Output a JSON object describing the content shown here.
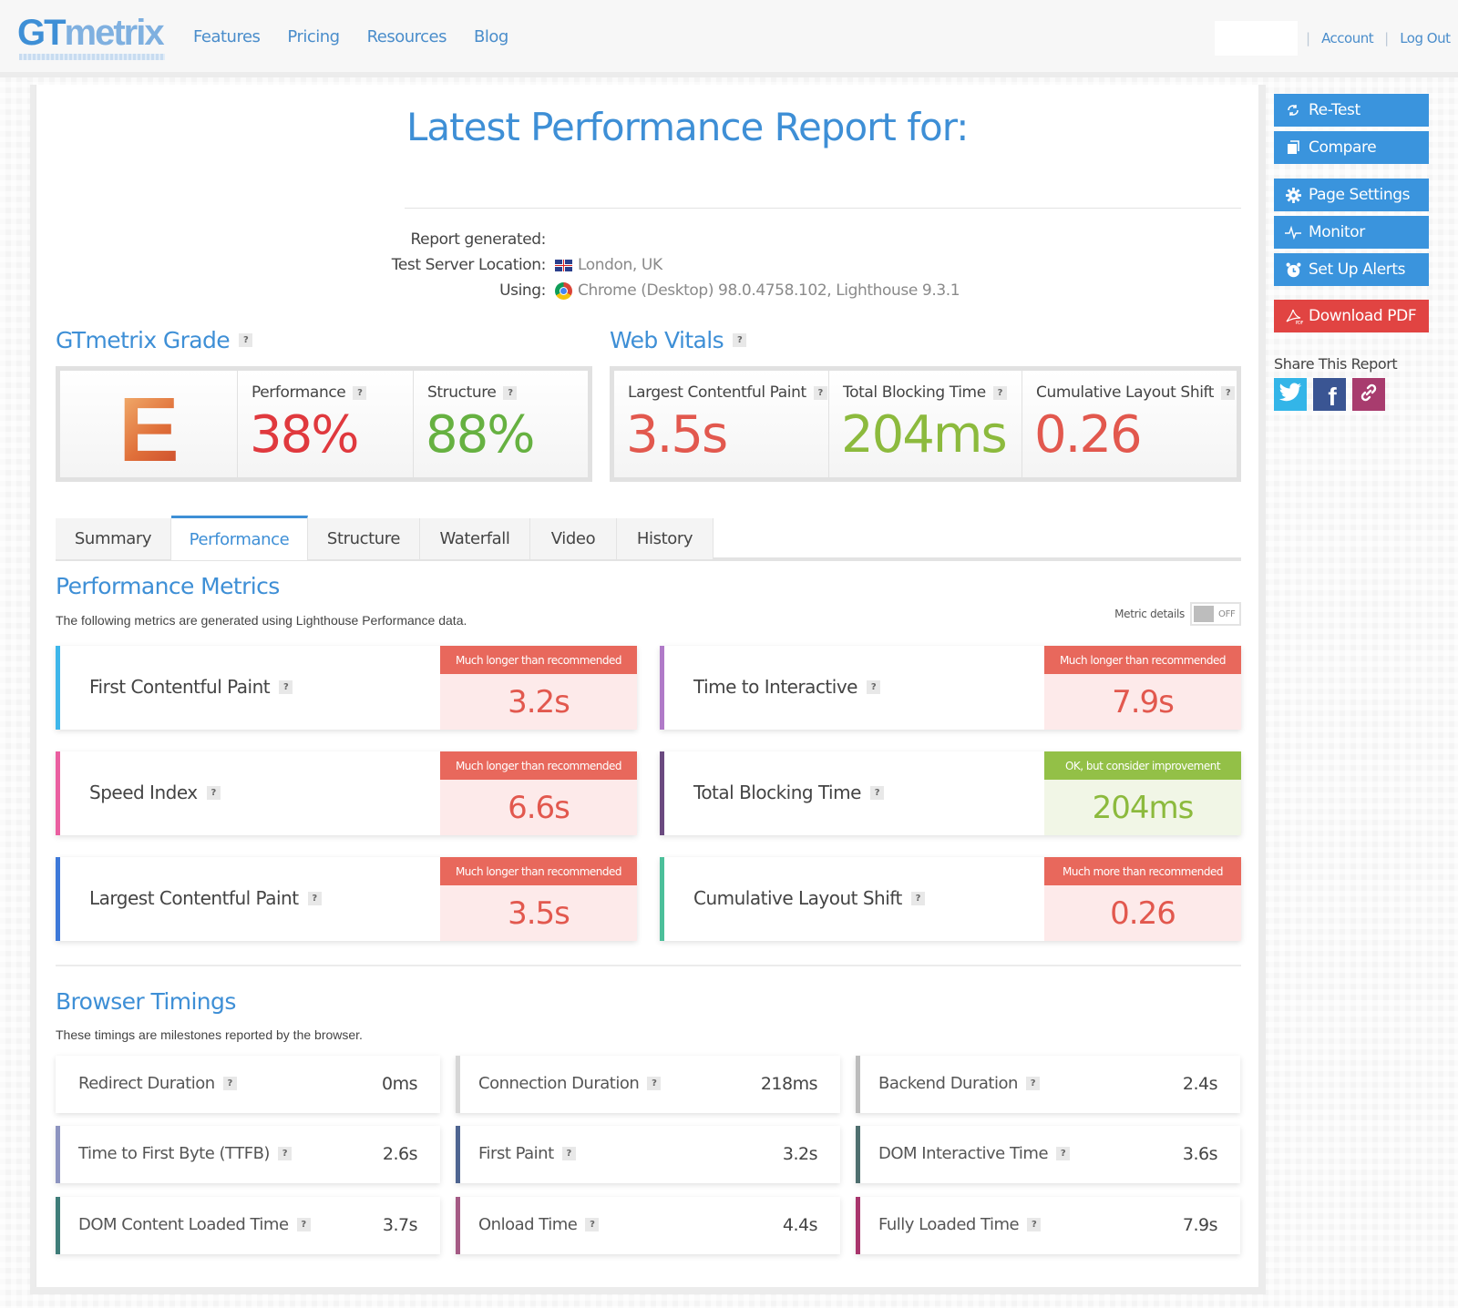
{
  "header": {
    "logo": "GTmetrix",
    "nav": [
      "Features",
      "Pricing",
      "Resources",
      "Blog"
    ],
    "user_links": [
      "Account",
      "Log Out"
    ],
    "separator": "|"
  },
  "report": {
    "title": "Latest Performance Report for:",
    "meta": [
      {
        "label": "Report generated:",
        "value": ""
      },
      {
        "label": "Test Server Location:",
        "value": "London, UK",
        "icon": "uk-flag-icon"
      },
      {
        "label": "Using:",
        "value": "Chrome (Desktop) 98.0.4758.102, Lighthouse 9.3.1",
        "icon": "chrome-icon"
      }
    ]
  },
  "grade": {
    "title": "GTmetrix Grade",
    "letter": "E",
    "performance_label": "Performance",
    "performance_value": "38%",
    "structure_label": "Structure",
    "structure_value": "88%"
  },
  "vitals": {
    "title": "Web Vitals",
    "items": [
      {
        "label": "Largest Contentful Paint",
        "value": "3.5s",
        "color": "#e2584e"
      },
      {
        "label": "Total Blocking Time",
        "value": "204ms",
        "color": "#8cba3d"
      },
      {
        "label": "Cumulative Layout Shift",
        "value": "0.26",
        "color": "#e2584e"
      }
    ]
  },
  "help_glyph": "?",
  "tabs": [
    "Summary",
    "Performance",
    "Structure",
    "Waterfall",
    "Video",
    "History"
  ],
  "active_tab": "Performance",
  "metrics": {
    "title": "Performance Metrics",
    "description": "The following metrics are generated using Lighthouse Performance data.",
    "toggle_label": "Metric details",
    "toggle_state": "OFF",
    "items": [
      {
        "name": "First Contentful Paint",
        "status": "Much longer than recommended",
        "value": "3.2s",
        "level": "bad",
        "color": "#3eb6ea"
      },
      {
        "name": "Time to Interactive",
        "status": "Much longer than recommended",
        "value": "7.9s",
        "level": "bad",
        "color": "#b07ac8"
      },
      {
        "name": "Speed Index",
        "status": "Much longer than recommended",
        "value": "6.6s",
        "level": "bad",
        "color": "#ea5fa0"
      },
      {
        "name": "Total Blocking Time",
        "status": "OK, but consider improvement",
        "value": "204ms",
        "level": "ok",
        "color": "#6b4a80"
      },
      {
        "name": "Largest Contentful Paint",
        "status": "Much longer than recommended",
        "value": "3.5s",
        "level": "bad",
        "color": "#3d78d8"
      },
      {
        "name": "Cumulative Layout Shift",
        "status": "Much more than recommended",
        "value": "0.26",
        "level": "bad",
        "color": "#4cbf9a"
      }
    ]
  },
  "timings": {
    "title": "Browser Timings",
    "description": "These timings are milestones reported by the browser.",
    "items": [
      {
        "name": "Redirect Duration",
        "value": "0ms",
        "color": "#ffffff"
      },
      {
        "name": "Connection Duration",
        "value": "218ms",
        "color": "#d6d6d6"
      },
      {
        "name": "Backend Duration",
        "value": "2.4s",
        "color": "#bcbcbc"
      },
      {
        "name": "Time to First Byte (TTFB)",
        "value": "2.6s",
        "color": "#8d94c0"
      },
      {
        "name": "First Paint",
        "value": "3.2s",
        "color": "#4e6490"
      },
      {
        "name": "DOM Interactive Time",
        "value": "3.6s",
        "color": "#4e6e6e"
      },
      {
        "name": "DOM Content Loaded Time",
        "value": "3.7s",
        "color": "#3e7c78"
      },
      {
        "name": "Onload Time",
        "value": "4.4s",
        "color": "#a45a84"
      },
      {
        "name": "Fully Loaded Time",
        "value": "7.9s",
        "color": "#a8356c"
      }
    ]
  },
  "sidebar": {
    "buttons": [
      {
        "label": "Re-Test",
        "icon": "refresh-icon"
      },
      {
        "label": "Compare",
        "icon": "compare-icon"
      },
      {
        "label": "Page Settings",
        "icon": "gear-icon"
      },
      {
        "label": "Monitor",
        "icon": "pulse-icon"
      },
      {
        "label": "Set Up Alerts",
        "icon": "alarm-clock-icon"
      },
      {
        "label": "Download PDF",
        "icon": "pdf-icon"
      }
    ],
    "share_title": "Share This Report",
    "share": [
      {
        "name": "twitter",
        "icon": "twitter-icon",
        "color": "#33b5e8"
      },
      {
        "name": "facebook",
        "icon": "facebook-icon",
        "color": "#3a5593"
      },
      {
        "name": "link",
        "icon": "link-icon",
        "color": "#a83c6e"
      }
    ],
    "pdf_badge": "PDF"
  },
  "colors": {
    "accent": "#3e8fd6",
    "button": "#3a94dd",
    "danger": "#e14442",
    "bad": "#e2584e",
    "good": "#8cba3d"
  }
}
